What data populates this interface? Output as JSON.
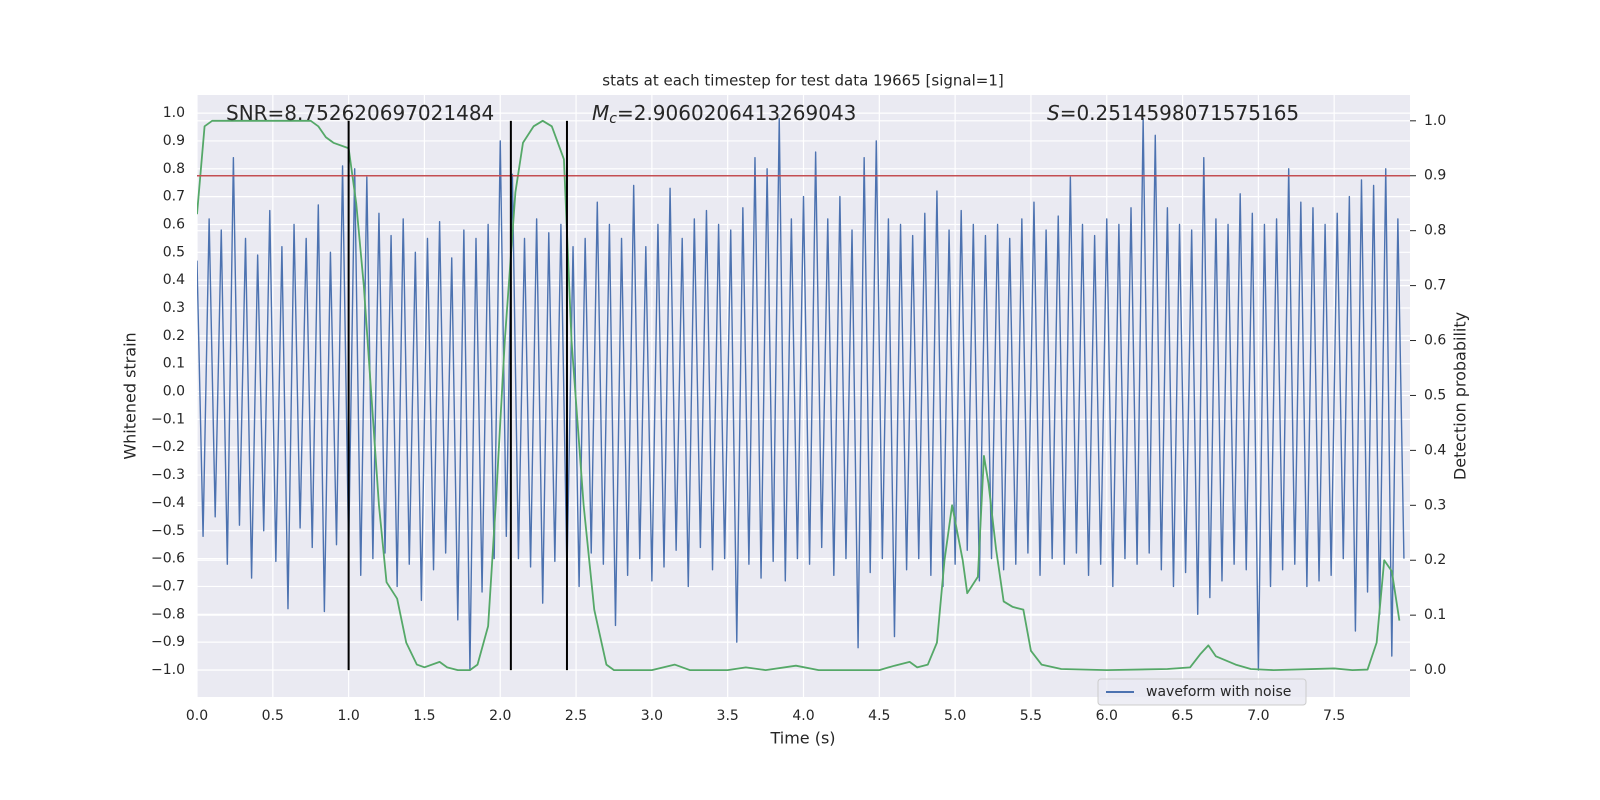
{
  "chart_data": {
    "type": "line",
    "title": "stats at each timestep for test data 19665 [signal=1]",
    "x_label": "Time (s)",
    "y_label": "Whitened strain",
    "y2_label": "Detection probability",
    "annotations": [
      {
        "text": "SNR=8.752620697021484"
      },
      {
        "symbol": "M",
        "subscript": "c",
        "text": "=2.9060206413269043"
      },
      {
        "symbol": "S",
        "text": "=0.2514598071575165"
      }
    ],
    "xlim": [
      0,
      8
    ],
    "ylim": [
      -1.097,
      1.065
    ],
    "y2lim": [
      -0.049,
      1.047
    ],
    "xticks": [
      {
        "value": 0,
        "label": "0.0"
      },
      {
        "value": 0.5,
        "label": "0.5"
      },
      {
        "value": 1,
        "label": "1.0"
      },
      {
        "value": 1.5,
        "label": "1.5"
      },
      {
        "value": 2,
        "label": "2.0"
      },
      {
        "value": 2.5,
        "label": "2.5"
      },
      {
        "value": 3,
        "label": "3.0"
      },
      {
        "value": 3.5,
        "label": "3.5"
      },
      {
        "value": 4,
        "label": "4.0"
      },
      {
        "value": 4.5,
        "label": "4.5"
      },
      {
        "value": 5,
        "label": "5.0"
      },
      {
        "value": 5.5,
        "label": "5.5"
      },
      {
        "value": 6,
        "label": "6.0"
      },
      {
        "value": 6.5,
        "label": "6.5"
      },
      {
        "value": 7,
        "label": "7.0"
      },
      {
        "value": 7.5,
        "label": "7.5"
      }
    ],
    "yticks": [
      {
        "value": -1,
        "label": "−1.0"
      },
      {
        "value": -0.9,
        "label": "−0.9"
      },
      {
        "value": -0.8,
        "label": "−0.8"
      },
      {
        "value": -0.7,
        "label": "−0.7"
      },
      {
        "value": -0.6,
        "label": "−0.6"
      },
      {
        "value": -0.5,
        "label": "−0.5"
      },
      {
        "value": -0.4,
        "label": "−0.4"
      },
      {
        "value": -0.3,
        "label": "−0.3"
      },
      {
        "value": -0.2,
        "label": "−0.2"
      },
      {
        "value": -0.1,
        "label": "−0.1"
      },
      {
        "value": 0,
        "label": "0.0"
      },
      {
        "value": 0.1,
        "label": "0.1"
      },
      {
        "value": 0.2,
        "label": "0.2"
      },
      {
        "value": 0.3,
        "label": "0.3"
      },
      {
        "value": 0.4,
        "label": "0.4"
      },
      {
        "value": 0.5,
        "label": "0.5"
      },
      {
        "value": 0.6,
        "label": "0.6"
      },
      {
        "value": 0.7,
        "label": "0.7"
      },
      {
        "value": 0.8,
        "label": "0.8"
      },
      {
        "value": 0.9,
        "label": "0.9"
      },
      {
        "value": 1,
        "label": "1.0"
      }
    ],
    "y2ticks": [
      {
        "value": 0,
        "label": "0.0"
      },
      {
        "value": 0.1,
        "label": "0.1"
      },
      {
        "value": 0.2,
        "label": "0.2"
      },
      {
        "value": 0.3,
        "label": "0.3"
      },
      {
        "value": 0.4,
        "label": "0.4"
      },
      {
        "value": 0.5,
        "label": "0.5"
      },
      {
        "value": 0.6,
        "label": "0.6"
      },
      {
        "value": 0.7,
        "label": "0.7"
      },
      {
        "value": 0.8,
        "label": "0.8"
      },
      {
        "value": 0.9,
        "label": "0.9"
      },
      {
        "value": 1,
        "label": "1.0"
      }
    ],
    "grid": true,
    "legend": "lower right",
    "series": [
      {
        "name": "waveform with noise",
        "color": "#4c72b0",
        "x": [
          0,
          0.04,
          0.08,
          0.12,
          0.16,
          0.2,
          0.24,
          0.28,
          0.32,
          0.36,
          0.4,
          0.44,
          0.48,
          0.52,
          0.56,
          0.6,
          0.64,
          0.68,
          0.72,
          0.76,
          0.8,
          0.84,
          0.88,
          0.92,
          0.96,
          1,
          1.04,
          1.08,
          1.12,
          1.16,
          1.2,
          1.24,
          1.28,
          1.32,
          1.36,
          1.4,
          1.44,
          1.48,
          1.52,
          1.56,
          1.6,
          1.64,
          1.68,
          1.72,
          1.76,
          1.8,
          1.84,
          1.88,
          1.92,
          1.96,
          2,
          2.04,
          2.08,
          2.12,
          2.16,
          2.2,
          2.24,
          2.28,
          2.32,
          2.36,
          2.4,
          2.44,
          2.48,
          2.52,
          2.56,
          2.6,
          2.64,
          2.68,
          2.72,
          2.76,
          2.8,
          2.84,
          2.88,
          2.92,
          2.96,
          3,
          3.04,
          3.08,
          3.12,
          3.16,
          3.2,
          3.24,
          3.28,
          3.32,
          3.36,
          3.4,
          3.44,
          3.48,
          3.52,
          3.56,
          3.6,
          3.64,
          3.68,
          3.72,
          3.76,
          3.8,
          3.84,
          3.88,
          3.92,
          3.96,
          4,
          4.04,
          4.08,
          4.12,
          4.16,
          4.2,
          4.24,
          4.28,
          4.32,
          4.36,
          4.4,
          4.44,
          4.48,
          4.52,
          4.56,
          4.6,
          4.64,
          4.68,
          4.72,
          4.76,
          4.8,
          4.84,
          4.88,
          4.92,
          4.96,
          5,
          5.04,
          5.08,
          5.12,
          5.16,
          5.2,
          5.24,
          5.28,
          5.32,
          5.36,
          5.4,
          5.44,
          5.48,
          5.52,
          5.56,
          5.6,
          5.64,
          5.68,
          5.72,
          5.76,
          5.8,
          5.84,
          5.88,
          5.92,
          5.96,
          6,
          6.04,
          6.08,
          6.12,
          6.16,
          6.2,
          6.24,
          6.28,
          6.32,
          6.36,
          6.4,
          6.44,
          6.48,
          6.52,
          6.56,
          6.6,
          6.64,
          6.68,
          6.72,
          6.76,
          6.8,
          6.84,
          6.88,
          6.92,
          6.96,
          7,
          7.04,
          7.08,
          7.12,
          7.16,
          7.2,
          7.24,
          7.28,
          7.32,
          7.36,
          7.4,
          7.44,
          7.48,
          7.52,
          7.56,
          7.6,
          7.64,
          7.68,
          7.72,
          7.76,
          7.8,
          7.84,
          7.88,
          7.92,
          7.96
        ],
        "values": [
          0.47,
          -0.52,
          0.62,
          -0.45,
          0.58,
          -0.62,
          0.84,
          -0.48,
          0.55,
          -0.67,
          0.49,
          -0.5,
          0.65,
          -0.61,
          0.52,
          -0.78,
          0.6,
          -0.49,
          0.55,
          -0.56,
          0.67,
          -0.79,
          0.5,
          -0.55,
          0.81,
          -0.57,
          0.8,
          -0.66,
          0.77,
          -0.6,
          0.64,
          -0.58,
          0.56,
          -0.7,
          0.62,
          -0.62,
          0.5,
          -0.75,
          0.55,
          -0.64,
          0.61,
          -0.58,
          0.48,
          -0.82,
          0.58,
          -1.0,
          0.55,
          -0.72,
          0.6,
          -0.6,
          0.9,
          -0.52,
          0.78,
          -0.6,
          0.55,
          -0.63,
          0.62,
          -0.76,
          0.57,
          -0.61,
          0.6,
          -0.65,
          0.52,
          -0.7,
          0.55,
          -0.58,
          0.68,
          -0.62,
          0.6,
          -0.84,
          0.55,
          -0.66,
          0.74,
          -0.6,
          0.52,
          -0.68,
          0.6,
          -0.63,
          0.73,
          -0.57,
          0.55,
          -0.7,
          0.62,
          -0.56,
          0.65,
          -0.64,
          0.6,
          -0.6,
          0.58,
          -0.9,
          0.66,
          -0.62,
          0.84,
          -0.67,
          0.8,
          -0.61,
          0.98,
          -0.68,
          0.62,
          -0.6,
          0.7,
          -0.62,
          0.86,
          -0.56,
          0.62,
          -0.66,
          0.7,
          -0.6,
          0.58,
          -0.92,
          0.84,
          -0.65,
          0.9,
          -0.6,
          0.62,
          -0.88,
          0.6,
          -0.64,
          0.56,
          -0.6,
          0.64,
          -0.66,
          0.72,
          -0.7,
          0.58,
          -0.62,
          0.65,
          -0.57,
          0.6,
          -0.68,
          0.56,
          -0.6,
          0.6,
          -0.64,
          0.55,
          -0.62,
          0.62,
          -0.58,
          0.68,
          -0.66,
          0.58,
          -0.6,
          0.63,
          -0.62,
          0.77,
          -0.58,
          0.6,
          -0.66,
          0.56,
          -0.62,
          0.62,
          -0.7,
          0.6,
          -0.6,
          0.66,
          -0.62,
          0.98,
          -0.58,
          0.92,
          -0.64,
          0.66,
          -0.7,
          0.6,
          -0.65,
          0.58,
          -0.8,
          0.84,
          -0.74,
          0.62,
          -0.68,
          0.6,
          -0.62,
          0.71,
          -0.64,
          0.64,
          -1.0,
          0.6,
          -0.7,
          0.62,
          -0.64,
          0.8,
          -0.62,
          0.68,
          -0.7,
          0.66,
          -0.68,
          0.6,
          -0.66,
          0.64,
          -0.6,
          0.7,
          -0.86,
          0.76,
          -0.72,
          0.74,
          -0.8,
          0.8,
          -0.95,
          0.62,
          -0.6
        ]
      },
      {
        "color": "#55a868",
        "axis": "y2",
        "x": [
          0,
          0.05,
          0.1,
          0.2,
          0.4,
          0.6,
          0.75,
          0.8,
          0.85,
          0.9,
          1,
          1.05,
          1.1,
          1.15,
          1.2,
          1.25,
          1.32,
          1.38,
          1.45,
          1.5,
          1.6,
          1.65,
          1.72,
          1.8,
          1.85,
          1.92,
          1.97,
          2.03,
          2.1,
          2.15,
          2.22,
          2.28,
          2.34,
          2.42,
          2.47,
          2.55,
          2.62,
          2.7,
          2.75,
          2.9,
          3,
          3.15,
          3.25,
          3.5,
          3.62,
          3.75,
          3.95,
          4.1,
          4.5,
          4.6,
          4.7,
          4.75,
          4.82,
          4.88,
          4.93,
          4.98,
          5.05,
          5.08,
          5.15,
          5.19,
          5.22,
          5.27,
          5.32,
          5.38,
          5.45,
          5.5,
          5.57,
          5.7,
          6,
          6.4,
          6.55,
          6.62,
          6.67,
          6.72,
          6.85,
          6.95,
          7.1,
          7.5,
          7.62,
          7.72,
          7.78,
          7.83,
          7.88,
          7.93
        ],
        "values": [
          0.83,
          0.99,
          1.0,
          1.0,
          1.0,
          1.0,
          1.0,
          0.99,
          0.97,
          0.96,
          0.95,
          0.85,
          0.7,
          0.5,
          0.3,
          0.16,
          0.13,
          0.05,
          0.01,
          0.005,
          0.015,
          0.005,
          0.0,
          0.0,
          0.01,
          0.08,
          0.3,
          0.6,
          0.87,
          0.96,
          0.99,
          1.0,
          0.99,
          0.93,
          0.6,
          0.3,
          0.11,
          0.01,
          0.0,
          0.0,
          0.0,
          0.01,
          0.0,
          0.0,
          0.005,
          0.0,
          0.008,
          0.0,
          0.0,
          0.008,
          0.015,
          0.005,
          0.01,
          0.05,
          0.2,
          0.3,
          0.2,
          0.14,
          0.17,
          0.39,
          0.34,
          0.22,
          0.125,
          0.115,
          0.11,
          0.035,
          0.01,
          0.002,
          0.0,
          0.002,
          0.005,
          0.03,
          0.045,
          0.025,
          0.01,
          0.002,
          0.0,
          0.003,
          0.0,
          0.001,
          0.05,
          0.2,
          0.18,
          0.09
        ]
      }
    ],
    "hline": {
      "axis": "y2",
      "y": 0.9,
      "color": "#c44e52"
    },
    "vlines": {
      "axis": "y2",
      "x": [
        1.0,
        2.07,
        2.44
      ],
      "ymin": 0,
      "ymax": 1,
      "color": "#000000"
    }
  }
}
